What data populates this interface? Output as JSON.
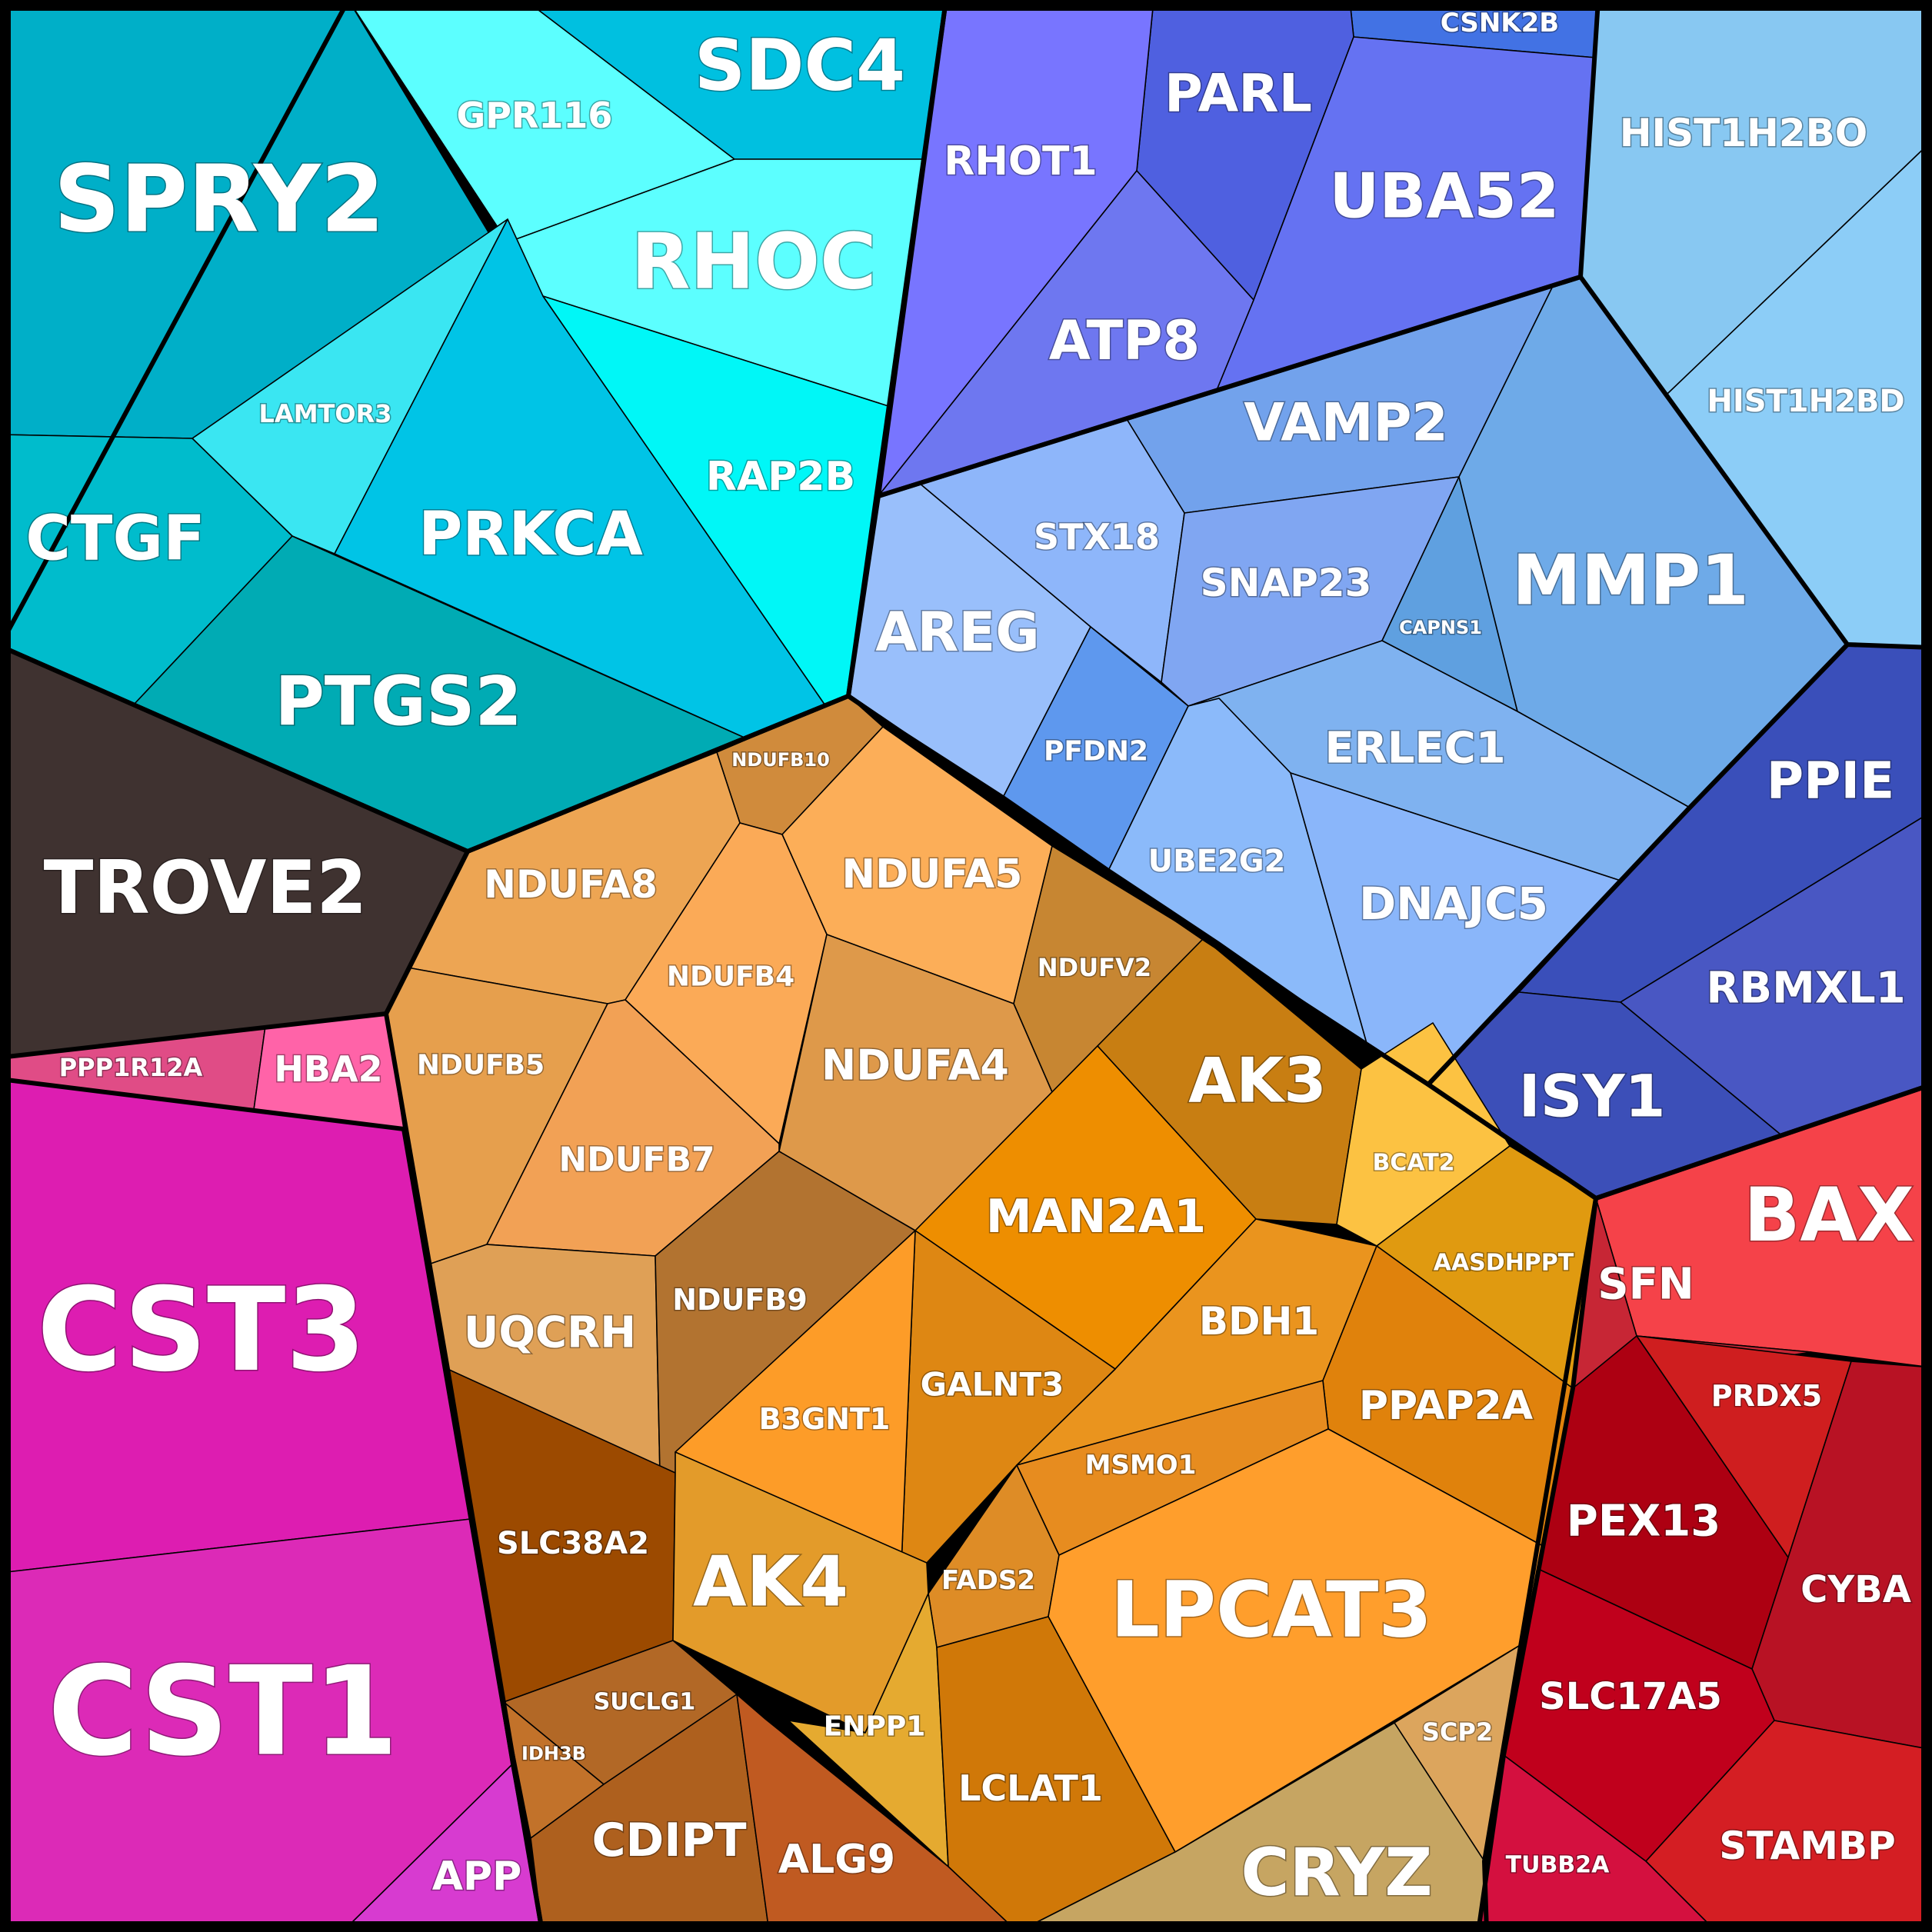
{
  "chart_data": {
    "type": "voronoi-treemap",
    "groups": [
      {
        "id": "cyan",
        "cells": [
          {
            "label": "SPRY2",
            "color": "#00AFC8"
          },
          {
            "label": "GPR116",
            "color": "#5CFFFF"
          },
          {
            "label": "SDC4",
            "color": "#00C0E0"
          },
          {
            "label": "RHOC",
            "color": "#5CFFFF"
          },
          {
            "label": "LAMTOR3",
            "color": "#3AE6F2"
          },
          {
            "label": "PRKCA",
            "color": "#00C4E6"
          },
          {
            "label": "RAP2B",
            "color": "#00F7F7"
          },
          {
            "label": "CTGF",
            "color": "#00BCCC"
          },
          {
            "label": "PTGS2",
            "color": "#00ABB4"
          }
        ]
      },
      {
        "id": "dark",
        "cells": [
          {
            "label": "TROVE2",
            "color": "#3F3230"
          }
        ]
      },
      {
        "id": "pink",
        "cells": [
          {
            "label": "PPP1R12A",
            "color": "#E04C86"
          },
          {
            "label": "HBA2",
            "color": "#FF63A8"
          }
        ]
      },
      {
        "id": "magenta",
        "cells": [
          {
            "label": "CST3",
            "color": "#DD1DB1"
          },
          {
            "label": "CST1",
            "color": "#DC2AB7"
          },
          {
            "label": "APP",
            "color": "#D73BD0"
          }
        ]
      },
      {
        "id": "violet",
        "cells": [
          {
            "label": "CSNK2B",
            "color": "#4272E4"
          },
          {
            "label": "PARL",
            "color": "#4F60E0"
          },
          {
            "label": "RHOT1",
            "color": "#7875FF"
          },
          {
            "label": "UBA52",
            "color": "#6572F2"
          },
          {
            "label": "ATP8",
            "color": "#6E77F0"
          }
        ]
      },
      {
        "id": "lightblue",
        "cells": [
          {
            "label": "HIST1H2BO",
            "color": "#88C8F2"
          },
          {
            "label": "HIST1H2BD",
            "color": "#8CCDF7"
          }
        ]
      },
      {
        "id": "blue",
        "cells": [
          {
            "label": "VAMP2",
            "color": "#72A2EC"
          },
          {
            "label": "STX18",
            "color": "#8EB6FA"
          },
          {
            "label": "SNAP23",
            "color": "#80A6F2"
          },
          {
            "label": "CAPNS1",
            "color": "#5FA0E0"
          },
          {
            "label": "MMP1",
            "color": "#6EAAE8"
          },
          {
            "label": "AREG",
            "color": "#99BFFB"
          },
          {
            "label": "PFDN2",
            "color": "#5E98EE"
          },
          {
            "label": "ERLEC1",
            "color": "#7FB2F0"
          },
          {
            "label": "UBE2G2",
            "color": "#8BBAFA"
          },
          {
            "label": "DNAJC5",
            "color": "#8AB6FA"
          }
        ]
      },
      {
        "id": "navy",
        "cells": [
          {
            "label": "PPIE",
            "color": "#3A4FBA"
          },
          {
            "label": "RBMXL1",
            "color": "#4957C3"
          },
          {
            "label": "ISY1",
            "color": "#3C4FB8"
          }
        ]
      },
      {
        "id": "orange",
        "cells": [
          {
            "label": "NDUFB10",
            "color": "#D08B3C"
          },
          {
            "label": "NDUFA8",
            "color": "#EDA553"
          },
          {
            "label": "NDUFA5",
            "color": "#FCAE58"
          },
          {
            "label": "NDUFB4",
            "color": "#FBAA57"
          },
          {
            "label": "NDUFV2",
            "color": "#C78632"
          },
          {
            "label": "NDUFB5",
            "color": "#E69F4D"
          },
          {
            "label": "NDUFA4",
            "color": "#DE994A"
          },
          {
            "label": "NDUFB7",
            "color": "#F2A155"
          },
          {
            "label": "UQCRH",
            "color": "#DFA056"
          },
          {
            "label": "NDUFB9",
            "color": "#B27330"
          },
          {
            "label": "AK3",
            "color": "#C87E12"
          },
          {
            "label": "BCAT2",
            "color": "#FCC242"
          },
          {
            "label": "MAN2A1",
            "color": "#EE8E00"
          },
          {
            "label": "AASDHPPT",
            "color": "#E09A10"
          },
          {
            "label": "BDH1",
            "color": "#EA941E"
          },
          {
            "label": "PPAP2A",
            "color": "#E0820C"
          },
          {
            "label": "GALNT3",
            "color": "#DE8713"
          },
          {
            "label": "B3GNT1",
            "color": "#FD9C28"
          },
          {
            "label": "MSMO1",
            "color": "#E78C1F"
          },
          {
            "label": "SLC38A2",
            "color": "#9C4A00"
          },
          {
            "label": "AK4",
            "color": "#E39B2A"
          },
          {
            "label": "FADS2",
            "color": "#DE8C26"
          },
          {
            "label": "LPCAT3",
            "color": "#FF9E2C"
          },
          {
            "label": "SUCLG1",
            "color": "#B26826"
          },
          {
            "label": "IDH3B",
            "color": "#C2722A"
          },
          {
            "label": "ENPP1",
            "color": "#E5AA30"
          },
          {
            "label": "LCLAT1",
            "color": "#D07808"
          },
          {
            "label": "SCP2",
            "color": "#DCA55D"
          },
          {
            "label": "CDIPT",
            "color": "#AE601E"
          },
          {
            "label": "ALG9",
            "color": "#C05A21"
          },
          {
            "label": "CRYZ",
            "color": "#C6A562"
          }
        ]
      },
      {
        "id": "red",
        "cells": [
          {
            "label": "BAX",
            "color": "#F54249"
          },
          {
            "label": "SFN",
            "color": "#C72635"
          },
          {
            "label": "PRDX5",
            "color": "#CF1E1F"
          },
          {
            "label": "PEX13",
            "color": "#AD0012"
          },
          {
            "label": "CYBA",
            "color": "#B81224"
          },
          {
            "label": "SLC17A5",
            "color": "#C0001C"
          },
          {
            "label": "STAMBP",
            "color": "#D41E23"
          },
          {
            "label": "TUBB2A",
            "color": "#D4103F"
          }
        ]
      }
    ]
  }
}
